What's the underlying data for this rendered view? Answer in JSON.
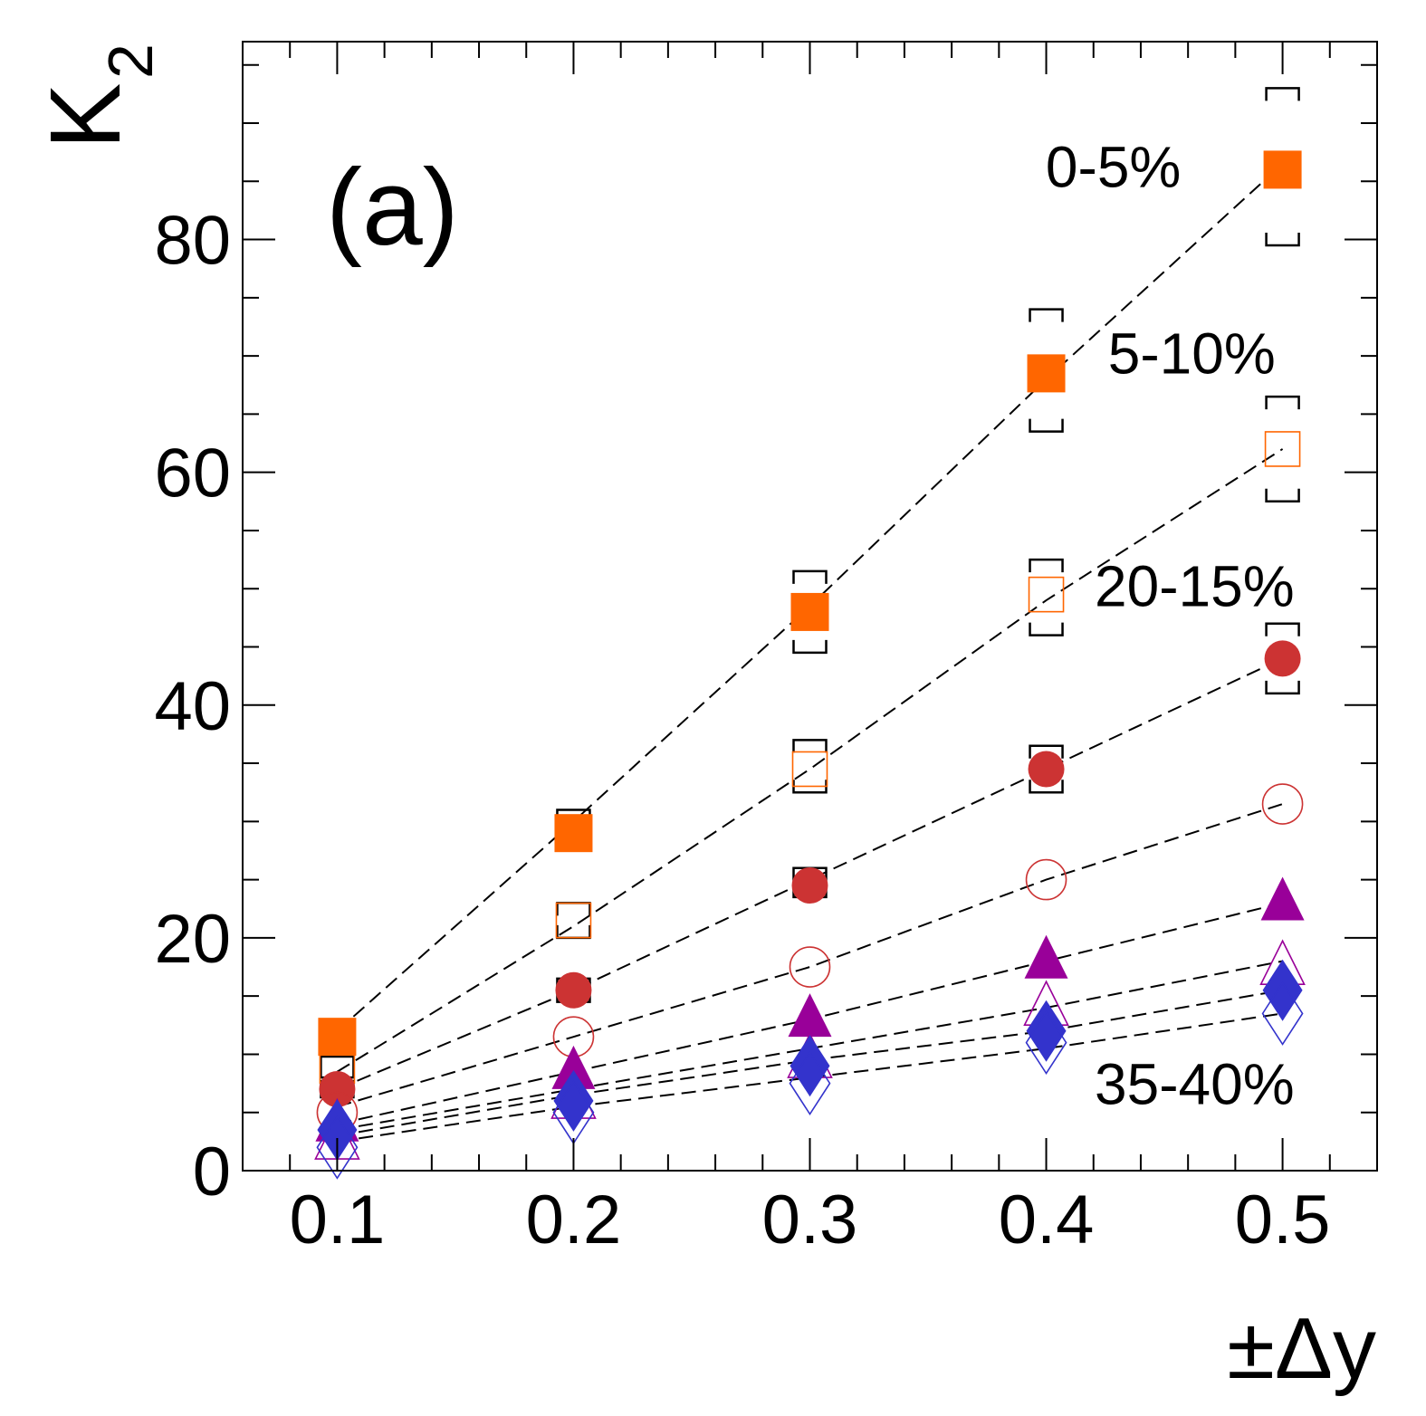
{
  "chart_data": {
    "type": "scatter",
    "panel_label": "(a)",
    "xlabel": "±Δy",
    "ylabel_main": "K",
    "ylabel_sub": "2",
    "xlim": [
      0.06,
      0.54
    ],
    "ylim": [
      0,
      97
    ],
    "x_ticks": [
      "0.1",
      "0.2",
      "0.3",
      "0.4",
      "0.5"
    ],
    "x_tick_values": [
      0.1,
      0.2,
      0.3,
      0.4,
      0.5
    ],
    "y_ticks": [
      "0",
      "20",
      "40",
      "60",
      "80"
    ],
    "y_tick_values": [
      0,
      20,
      40,
      60,
      80
    ],
    "grid": false,
    "x": [
      0.1,
      0.2,
      0.3,
      0.4,
      0.5
    ],
    "series": [
      {
        "name": "0-5%",
        "marker": "square-filled",
        "color": "#ff6600",
        "values": [
          11.5,
          29.0,
          48.0,
          68.5,
          86.0
        ],
        "fit": [
          12.0,
          30.0,
          48.5,
          68.0,
          86.5
        ],
        "syst": [
          [
            10.8,
            12.6
          ],
          [
            27.5,
            31.0
          ],
          [
            44.5,
            51.5
          ],
          [
            63.5,
            74.0
          ],
          [
            79.5,
            93.0
          ]
        ]
      },
      {
        "name": "5-10%",
        "marker": "square-open",
        "color": "#ff6600",
        "values": [
          9.0,
          21.5,
          34.5,
          49.5,
          62.0
        ],
        "fit": [
          8.5,
          21.0,
          34.5,
          49.0,
          62.0
        ],
        "syst": [
          [
            8.0,
            9.8
          ],
          [
            20.0,
            23.0
          ],
          [
            32.5,
            37.0
          ],
          [
            46.0,
            52.5
          ],
          [
            57.5,
            66.5
          ]
        ]
      },
      {
        "name": "20-15%",
        "marker": "circle-filled",
        "color": "#cc3333",
        "values": [
          7.0,
          15.5,
          24.5,
          34.5,
          44.0
        ],
        "fit": [
          7.0,
          15.5,
          25.0,
          34.5,
          44.0
        ],
        "syst": [
          [
            6.3,
            7.7
          ],
          [
            14.5,
            16.5
          ],
          [
            23.5,
            26.0
          ],
          [
            32.5,
            36.5
          ],
          [
            41.0,
            47.0
          ]
        ]
      },
      {
        "name": "",
        "marker": "circle-open",
        "color": "#cc3333",
        "values": [
          5.0,
          11.5,
          17.5,
          25.0,
          31.5
        ],
        "fit": [
          5.5,
          11.5,
          17.5,
          25.0,
          31.5
        ],
        "syst": []
      },
      {
        "name": "",
        "marker": "triangle-filled",
        "color": "#990099",
        "values": [
          4.0,
          8.5,
          13.0,
          18.0,
          23.0
        ],
        "fit": [
          4.0,
          8.5,
          13.0,
          18.0,
          23.0
        ],
        "syst": []
      },
      {
        "name": "",
        "marker": "triangle-open",
        "color": "#990099",
        "values": [
          2.5,
          6.0,
          9.5,
          14.0,
          17.5
        ],
        "fit": [
          3.5,
          7.0,
          10.5,
          14.0,
          18.0
        ],
        "syst": []
      },
      {
        "name": "",
        "marker": "diamond-filled",
        "color": "#3333cc",
        "values": [
          3.5,
          6.0,
          9.0,
          12.0,
          15.5
        ],
        "fit": [
          3.0,
          6.5,
          9.5,
          12.0,
          15.5
        ],
        "syst": []
      },
      {
        "name": "35-40%",
        "marker": "diamond-open",
        "color": "#3333cc",
        "values": [
          2.0,
          5.0,
          7.5,
          11.0,
          13.5
        ],
        "fit": [
          2.5,
          5.5,
          8.0,
          10.5,
          13.5
        ],
        "syst": []
      }
    ],
    "annotations": [
      {
        "text": "0-5%",
        "x": 0.457,
        "y": 84.5
      },
      {
        "text": "5-10%",
        "x": 0.497,
        "y": 68.5
      },
      {
        "text": "20-15%",
        "x": 0.505,
        "y": 48.5
      },
      {
        "text": "35-40%",
        "x": 0.505,
        "y": 5.7
      }
    ]
  }
}
